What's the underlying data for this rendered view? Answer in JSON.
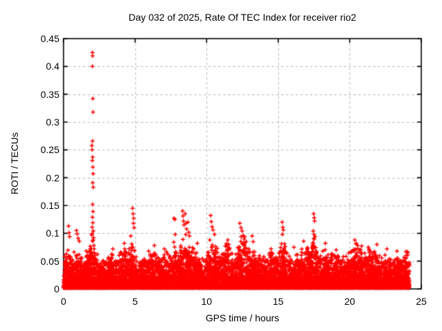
{
  "chart_data": {
    "type": "scatter",
    "title": "Day 032 of 2025, Rate Of TEC Index for receiver rio2",
    "xlabel": "GPS time / hours",
    "ylabel": "ROTI / TECUs",
    "xlim": [
      0,
      25
    ],
    "ylim": [
      0,
      0.45
    ],
    "xticks": [
      0,
      5,
      10,
      15,
      20,
      25
    ],
    "xtick_labels": [
      "0",
      "5",
      "10",
      "15",
      "20",
      "25"
    ],
    "yticks": [
      0,
      0.05,
      0.1,
      0.15,
      0.2,
      0.25,
      0.3,
      0.35,
      0.4,
      0.45
    ],
    "ytick_labels": [
      "0",
      "0.05",
      "0.1",
      "0.15",
      "0.2",
      "0.25",
      "0.3",
      "0.35",
      "0.4",
      "0.45"
    ],
    "legend": "none",
    "grid": {
      "show": true,
      "style": "dashed",
      "color": "#b8b8b8"
    },
    "border_color": "#000000",
    "marker": {
      "shape": "plus",
      "color": "#ff0000",
      "size": 6,
      "stroke": 1.5
    },
    "time_range_hours": [
      0,
      24.17
    ],
    "outliers": [
      [
        2.02,
        0.425
      ],
      [
        2.03,
        0.419
      ],
      [
        2.02,
        0.4
      ],
      [
        2.05,
        0.342
      ],
      [
        2.06,
        0.318
      ],
      [
        2.03,
        0.266
      ],
      [
        1.98,
        0.258
      ],
      [
        2.0,
        0.25
      ],
      [
        2.04,
        0.237
      ],
      [
        2.01,
        0.231
      ],
      [
        2.05,
        0.219
      ],
      [
        2.07,
        0.207
      ],
      [
        2.04,
        0.191
      ],
      [
        2.08,
        0.183
      ],
      [
        2.03,
        0.152
      ],
      [
        2.06,
        0.139
      ],
      [
        2.02,
        0.129
      ],
      [
        2.05,
        0.119
      ],
      [
        2.0,
        0.111
      ],
      [
        2.08,
        0.104
      ],
      [
        1.97,
        0.097
      ],
      [
        2.1,
        0.092
      ],
      [
        2.03,
        0.086
      ],
      [
        2.12,
        0.078
      ],
      [
        1.95,
        0.072
      ],
      [
        2.15,
        0.065
      ],
      [
        0.35,
        0.113
      ],
      [
        0.38,
        0.101
      ],
      [
        0.42,
        0.094
      ],
      [
        0.9,
        0.105
      ],
      [
        0.95,
        0.099
      ],
      [
        1.02,
        0.091
      ],
      [
        1.1,
        0.086
      ],
      [
        3.45,
        0.072
      ],
      [
        4.25,
        0.082
      ],
      [
        4.82,
        0.145
      ],
      [
        4.86,
        0.135
      ],
      [
        4.9,
        0.127
      ],
      [
        4.88,
        0.118
      ],
      [
        4.93,
        0.11
      ],
      [
        4.7,
        0.095
      ],
      [
        5.95,
        0.068
      ],
      [
        6.35,
        0.078
      ],
      [
        7.05,
        0.072
      ],
      [
        7.72,
        0.127
      ],
      [
        7.78,
        0.125
      ],
      [
        7.8,
        0.098
      ],
      [
        8.32,
        0.14
      ],
      [
        8.35,
        0.131
      ],
      [
        8.38,
        0.122
      ],
      [
        8.42,
        0.115
      ],
      [
        8.5,
        0.135
      ],
      [
        8.55,
        0.118
      ],
      [
        8.6,
        0.108
      ],
      [
        8.7,
        0.12
      ],
      [
        8.75,
        0.102
      ],
      [
        8.8,
        0.095
      ],
      [
        9.35,
        0.082
      ],
      [
        10.28,
        0.132
      ],
      [
        10.33,
        0.121
      ],
      [
        10.38,
        0.112
      ],
      [
        10.45,
        0.106
      ],
      [
        10.55,
        0.098
      ],
      [
        11.48,
        0.088
      ],
      [
        11.55,
        0.08
      ],
      [
        12.32,
        0.118
      ],
      [
        12.4,
        0.11
      ],
      [
        12.48,
        0.104
      ],
      [
        12.55,
        0.096
      ],
      [
        12.62,
        0.09
      ],
      [
        13.18,
        0.095
      ],
      [
        13.25,
        0.085
      ],
      [
        14.5,
        0.072
      ],
      [
        15.28,
        0.12
      ],
      [
        15.32,
        0.111
      ],
      [
        15.36,
        0.106
      ],
      [
        15.3,
        0.098
      ],
      [
        16.1,
        0.075
      ],
      [
        16.78,
        0.086
      ],
      [
        17.48,
        0.135
      ],
      [
        17.52,
        0.128
      ],
      [
        17.55,
        0.122
      ],
      [
        17.45,
        0.104
      ],
      [
        17.5,
        0.098
      ],
      [
        17.58,
        0.094
      ],
      [
        17.53,
        0.09
      ],
      [
        18.3,
        0.082
      ],
      [
        19.05,
        0.07
      ],
      [
        20.35,
        0.088
      ],
      [
        20.45,
        0.082
      ],
      [
        20.55,
        0.078
      ],
      [
        21.3,
        0.075
      ],
      [
        21.9,
        0.08
      ],
      [
        22.6,
        0.072
      ],
      [
        23.3,
        0.068
      ],
      [
        24.05,
        0.065
      ]
    ],
    "dense_band": {
      "description": "quasi-continuous ROTI background scatter, 0 to ~0.06 TECUs, upper envelope by hour",
      "points_per_hour": 420,
      "min": 0.002,
      "concentration": 3.0,
      "seed": 1234,
      "envelope": [
        [
          0.0,
          0.055
        ],
        [
          0.3,
          0.07
        ],
        [
          0.6,
          0.055
        ],
        [
          0.9,
          0.06
        ],
        [
          1.2,
          0.055
        ],
        [
          1.5,
          0.05
        ],
        [
          1.8,
          0.07
        ],
        [
          2.0,
          0.09
        ],
        [
          2.2,
          0.07
        ],
        [
          2.5,
          0.05
        ],
        [
          2.8,
          0.045
        ],
        [
          3.2,
          0.05
        ],
        [
          3.5,
          0.06
        ],
        [
          3.8,
          0.05
        ],
        [
          4.2,
          0.065
        ],
        [
          4.6,
          0.07
        ],
        [
          4.9,
          0.075
        ],
        [
          5.2,
          0.055
        ],
        [
          5.5,
          0.05
        ],
        [
          5.9,
          0.055
        ],
        [
          6.3,
          0.065
        ],
        [
          6.6,
          0.055
        ],
        [
          7.0,
          0.06
        ],
        [
          7.4,
          0.055
        ],
        [
          7.7,
          0.07
        ],
        [
          8.0,
          0.06
        ],
        [
          8.35,
          0.085
        ],
        [
          8.6,
          0.08
        ],
        [
          8.9,
          0.07
        ],
        [
          9.3,
          0.06
        ],
        [
          9.6,
          0.05
        ],
        [
          9.9,
          0.055
        ],
        [
          10.3,
          0.08
        ],
        [
          10.6,
          0.07
        ],
        [
          11.0,
          0.055
        ],
        [
          11.4,
          0.07
        ],
        [
          11.7,
          0.06
        ],
        [
          12.0,
          0.055
        ],
        [
          12.3,
          0.08
        ],
        [
          12.6,
          0.085
        ],
        [
          12.9,
          0.065
        ],
        [
          13.2,
          0.07
        ],
        [
          13.5,
          0.055
        ],
        [
          13.9,
          0.05
        ],
        [
          14.3,
          0.055
        ],
        [
          14.6,
          0.06
        ],
        [
          15.0,
          0.055
        ],
        [
          15.3,
          0.08
        ],
        [
          15.6,
          0.06
        ],
        [
          16.0,
          0.05
        ],
        [
          16.4,
          0.055
        ],
        [
          16.8,
          0.065
        ],
        [
          17.2,
          0.07
        ],
        [
          17.5,
          0.095
        ],
        [
          17.8,
          0.07
        ],
        [
          18.2,
          0.065
        ],
        [
          18.6,
          0.055
        ],
        [
          19.0,
          0.06
        ],
        [
          19.4,
          0.05
        ],
        [
          19.8,
          0.055
        ],
        [
          20.2,
          0.07
        ],
        [
          20.5,
          0.075
        ],
        [
          20.9,
          0.06
        ],
        [
          21.2,
          0.055
        ],
        [
          21.6,
          0.065
        ],
        [
          21.9,
          0.06
        ],
        [
          22.3,
          0.05
        ],
        [
          22.6,
          0.055
        ],
        [
          23.0,
          0.045
        ],
        [
          23.4,
          0.05
        ],
        [
          23.8,
          0.055
        ],
        [
          24.0,
          0.06
        ],
        [
          24.17,
          0.05
        ]
      ]
    }
  }
}
